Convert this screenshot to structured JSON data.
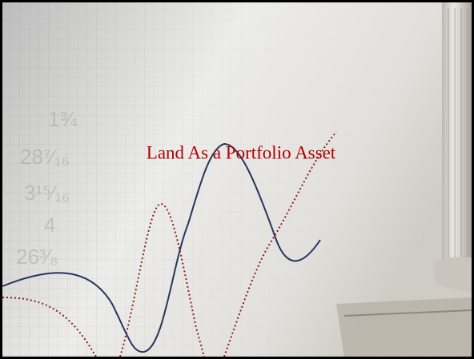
{
  "slide": {
    "title": "Land As a Portfolio Asset",
    "background_figures": [
      "1¾",
      "28⁷⁄₁₆",
      "3¹⁵⁄₁₆",
      "4",
      "26³⁄₈"
    ]
  }
}
